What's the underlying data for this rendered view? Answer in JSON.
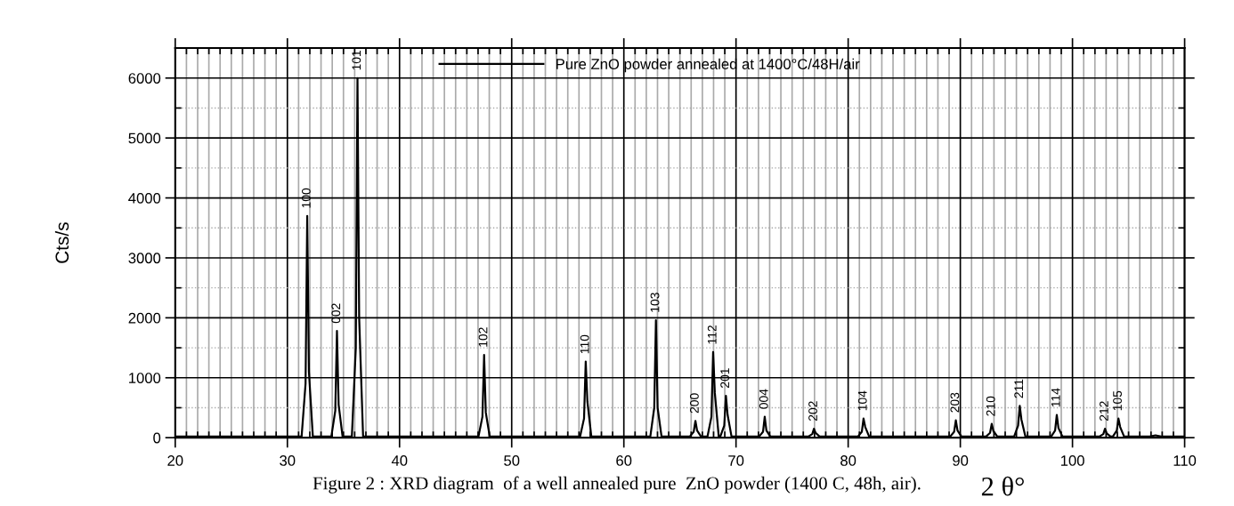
{
  "chart_data": {
    "type": "line",
    "xlabel": "2 θ°",
    "ylabel": "Cts/s",
    "x": [
      20,
      31.27,
      31.62,
      31.77,
      31.92,
      32.27,
      33.92,
      34.27,
      34.42,
      34.57,
      34.92,
      35.75,
      36.1,
      36.25,
      36.4,
      36.75,
      47.04,
      47.39,
      47.54,
      47.69,
      48.04,
      56.1,
      56.45,
      56.6,
      56.75,
      57.1,
      62.36,
      62.71,
      62.86,
      63.01,
      63.36,
      65.88,
      66.23,
      66.38,
      66.53,
      66.88,
      67.46,
      67.81,
      67.96,
      68.11,
      68.46,
      68.6,
      68.95,
      69.1,
      69.25,
      69.6,
      72.06,
      72.41,
      72.56,
      72.71,
      73.06,
      76.45,
      76.8,
      76.95,
      77.1,
      77.45,
      80.87,
      81.22,
      81.37,
      81.52,
      81.87,
      89.1,
      89.45,
      89.6,
      89.75,
      90.1,
      92.3,
      92.65,
      92.8,
      92.95,
      93.3,
      94.8,
      95.15,
      95.3,
      95.45,
      95.8,
      98.1,
      98.45,
      98.6,
      98.75,
      99.1,
      102.4,
      102.75,
      102.9,
      103.05,
      103.4,
      103.6,
      103.95,
      104.1,
      104.25,
      104.6,
      106.9,
      107.4,
      107.9,
      110
    ],
    "series": [
      {
        "name": "Pure ZnO powder annealed at 1400°C/48H/air",
        "color": "#000000",
        "values": [
          20,
          20,
          900,
          3700,
          1100,
          20,
          20,
          450,
          1780,
          550,
          20,
          20,
          1500,
          6000,
          2000,
          20,
          20,
          350,
          1380,
          420,
          20,
          20,
          320,
          1270,
          600,
          20,
          20,
          500,
          1960,
          500,
          20,
          20,
          100,
          280,
          120,
          20,
          20,
          350,
          1430,
          750,
          20,
          20,
          200,
          700,
          380,
          20,
          20,
          100,
          350,
          120,
          20,
          20,
          60,
          150,
          80,
          20,
          20,
          100,
          320,
          180,
          20,
          20,
          100,
          290,
          120,
          20,
          20,
          80,
          230,
          110,
          20,
          20,
          200,
          530,
          300,
          20,
          20,
          120,
          380,
          160,
          20,
          20,
          60,
          150,
          70,
          20,
          20,
          120,
          320,
          180,
          20,
          20,
          40,
          20,
          20
        ]
      }
    ],
    "xlim": [
      20,
      110
    ],
    "xticks": [
      20,
      {
        "value": 21,
        "label": null
      },
      {
        "value": 22,
        "label": null
      },
      {
        "value": 23,
        "label": null
      },
      {
        "value": 24,
        "label": null
      },
      {
        "value": 25,
        "label": null
      },
      {
        "value": 26,
        "label": null
      },
      {
        "value": 27,
        "label": null
      },
      {
        "value": 28,
        "label": null
      },
      {
        "value": 29,
        "label": null
      },
      30,
      {
        "value": 31,
        "label": null
      },
      {
        "value": 32,
        "label": null
      },
      {
        "value": 33,
        "label": null
      },
      {
        "value": 34,
        "label": null
      },
      {
        "value": 35,
        "label": null
      },
      {
        "value": 36,
        "label": null
      },
      {
        "value": 37,
        "label": null
      },
      {
        "value": 38,
        "label": null
      },
      {
        "value": 39,
        "label": null
      },
      40,
      {
        "value": 41,
        "label": null
      },
      {
        "value": 42,
        "label": null
      },
      {
        "value": 43,
        "label": null
      },
      {
        "value": 44,
        "label": null
      },
      {
        "value": 45,
        "label": null
      },
      {
        "value": 46,
        "label": null
      },
      {
        "value": 47,
        "label": null
      },
      {
        "value": 48,
        "label": null
      },
      {
        "value": 49,
        "label": null
      },
      50,
      {
        "value": 51,
        "label": null
      },
      {
        "value": 52,
        "label": null
      },
      {
        "value": 53,
        "label": null
      },
      {
        "value": 54,
        "label": null
      },
      {
        "value": 55,
        "label": null
      },
      {
        "value": 56,
        "label": null
      },
      {
        "value": 57,
        "label": null
      },
      {
        "value": 58,
        "label": null
      },
      {
        "value": 59,
        "label": null
      },
      60,
      {
        "value": 61,
        "label": null
      },
      {
        "value": 62,
        "label": null
      },
      {
        "value": 63,
        "label": null
      },
      {
        "value": 64,
        "label": null
      },
      {
        "value": 65,
        "label": null
      },
      {
        "value": 66,
        "label": null
      },
      {
        "value": 67,
        "label": null
      },
      {
        "value": 68,
        "label": null
      },
      {
        "value": 69,
        "label": null
      },
      70,
      {
        "value": 71,
        "label": null
      },
      {
        "value": 72,
        "label": null
      },
      {
        "value": 73,
        "label": null
      },
      {
        "value": 74,
        "label": null
      },
      {
        "value": 75,
        "label": null
      },
      {
        "value": 76,
        "label": null
      },
      {
        "value": 77,
        "label": null
      },
      {
        "value": 78,
        "label": null
      },
      {
        "value": 79,
        "label": null
      },
      80,
      {
        "value": 81,
        "label": null
      },
      {
        "value": 82,
        "label": null
      },
      {
        "value": 83,
        "label": null
      },
      {
        "value": 84,
        "label": null
      },
      {
        "value": 85,
        "label": null
      },
      {
        "value": 86,
        "label": null
      },
      {
        "value": 87,
        "label": null
      },
      {
        "value": 88,
        "label": null
      },
      {
        "value": 89,
        "label": null
      },
      90,
      {
        "value": 91,
        "label": null
      },
      {
        "value": 92,
        "label": null
      },
      {
        "value": 93,
        "label": null
      },
      {
        "value": 94,
        "label": null
      },
      {
        "value": 95,
        "label": null
      },
      {
        "value": 96,
        "label": null
      },
      {
        "value": 97,
        "label": null
      },
      {
        "value": 98,
        "label": null
      },
      {
        "value": 99,
        "label": null
      },
      100,
      {
        "value": 101,
        "label": null
      },
      {
        "value": 102,
        "label": null
      },
      {
        "value": 103,
        "label": null
      },
      {
        "value": 104,
        "label": null
      },
      {
        "value": 105,
        "label": null
      },
      {
        "value": 106,
        "label": null
      },
      {
        "value": 107,
        "label": null
      },
      {
        "value": 108,
        "label": null
      },
      {
        "value": 109,
        "label": null
      },
      110
    ],
    "ylim": [
      0,
      6500
    ],
    "yticks": [
      0,
      {
        "value": 500,
        "label": null
      },
      1000,
      {
        "value": 1500,
        "label": null
      },
      2000,
      {
        "value": 2500,
        "label": null
      },
      3000,
      {
        "value": 3500,
        "label": null
      },
      4000,
      {
        "value": 4500,
        "label": null
      },
      5000,
      {
        "value": 5500,
        "label": null
      },
      6000
    ],
    "grid": true,
    "legend": "top",
    "marker": "none",
    "line_style": "solid",
    "annotations": [
      {
        "text": "100",
        "x": 31.77,
        "y": 3700
      },
      {
        "text": "002",
        "x": 34.42,
        "y": 1780
      },
      {
        "text": "101",
        "x": 36.25,
        "y": 6000
      },
      {
        "text": "102",
        "x": 47.54,
        "y": 1380
      },
      {
        "text": "110",
        "x": 56.6,
        "y": 1270
      },
      {
        "text": "103",
        "x": 62.86,
        "y": 1960
      },
      {
        "text": "200",
        "x": 66.38,
        "y": 280
      },
      {
        "text": "112",
        "x": 67.96,
        "y": 1430
      },
      {
        "text": "201",
        "x": 69.1,
        "y": 700
      },
      {
        "text": "004",
        "x": 72.56,
        "y": 350
      },
      {
        "text": "202",
        "x": 76.95,
        "y": 150
      },
      {
        "text": "104",
        "x": 81.37,
        "y": 320
      },
      {
        "text": "203",
        "x": 89.6,
        "y": 290
      },
      {
        "text": "210",
        "x": 92.8,
        "y": 230
      },
      {
        "text": "211",
        "x": 95.3,
        "y": 530
      },
      {
        "text": "114",
        "x": 98.6,
        "y": 380
      },
      {
        "text": "212",
        "x": 102.9,
        "y": 150
      },
      {
        "text": "105",
        "x": 104.1,
        "y": 320
      },
      "Figure 2 : XRD diagram  of a well annealed pure  ZnO powder (1400 C, 48h, air)."
    ]
  }
}
